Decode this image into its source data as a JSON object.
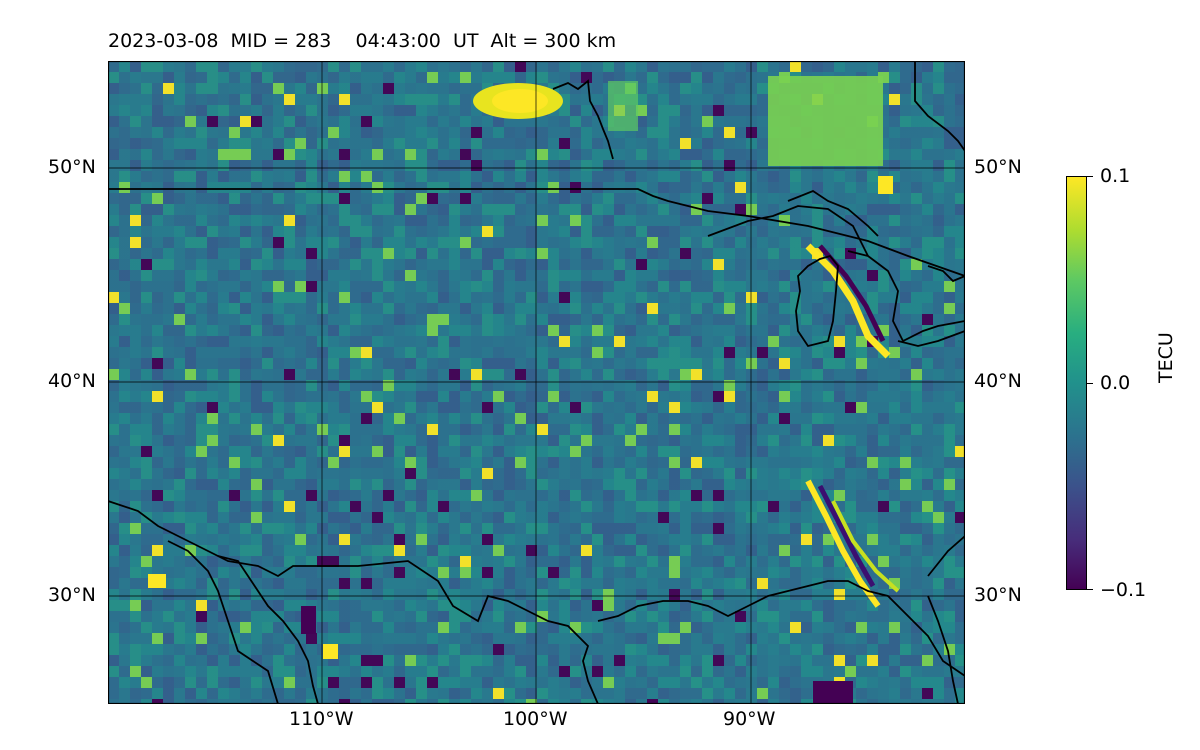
{
  "title": "2023-03-08  MID = 283    04:43:00  UT  Alt = 300 km",
  "map": {
    "projection": "equirectangular",
    "extent": {
      "lon": [
        -120,
        -80
      ],
      "lat": [
        25,
        55
      ]
    },
    "gridlines": true,
    "colormap": "viridis",
    "features": [
      "coastlines",
      "country-borders",
      "great-lakes"
    ]
  },
  "lat_labels": [
    "50°N",
    "40°N",
    "30°N"
  ],
  "lon_labels": [
    "110°W",
    "100°W",
    "90°W"
  ],
  "colorbar": {
    "label": "TECU",
    "ticks": [
      "0.1",
      "0.0",
      "−0.1"
    ],
    "range": [
      -0.1,
      0.1
    ]
  },
  "colors": {
    "low": "#440154",
    "mid": "#21918c",
    "high": "#fde725",
    "line": "#000000"
  }
}
